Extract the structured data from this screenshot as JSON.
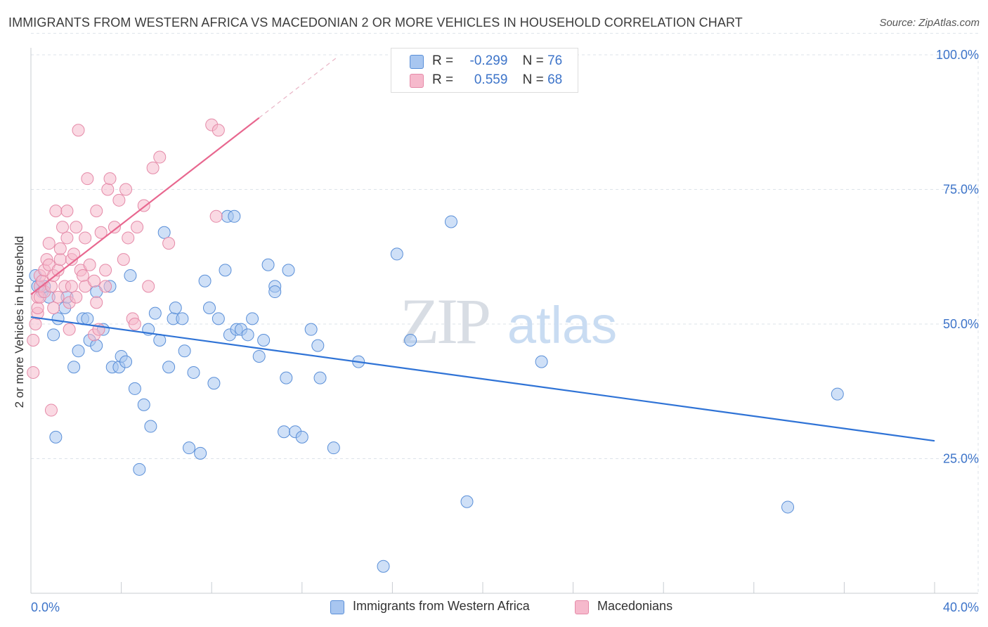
{
  "header": {
    "title": "IMMIGRANTS FROM WESTERN AFRICA VS MACEDONIAN 2 OR MORE VEHICLES IN HOUSEHOLD CORRELATION CHART",
    "source": "Source: ZipAtlas.com"
  },
  "watermark": {
    "zip": "ZIP",
    "atlas": "atlas"
  },
  "legend": {
    "r_label": "R =",
    "n_label": "N =",
    "rows": [
      {
        "r": "-0.299",
        "n": "76"
      },
      {
        "r": "0.559",
        "n": "68"
      }
    ]
  },
  "colors": {
    "blue_fill": "#a8c6f0",
    "blue_stroke": "#5a8fd8",
    "blue_line": "#2f73d6",
    "pink_fill": "#f6b9cc",
    "pink_stroke": "#e58aa8",
    "pink_line": "#e8678f",
    "axis_text": "#3d74c9",
    "grid": "#dde3ea"
  },
  "chart_data": {
    "type": "scatter",
    "title": "IMMIGRANTS FROM WESTERN AFRICA VS MACEDONIAN 2 OR MORE VEHICLES IN HOUSEHOLD CORRELATION CHART",
    "xlabel": "",
    "ylabel": "2 or more Vehicles in Household",
    "xlim": [
      0,
      40
    ],
    "ylim": [
      0,
      104
    ],
    "x_tick_labels": [
      "0.0%",
      "40.0%"
    ],
    "y_ticks": [
      25,
      50,
      75,
      100
    ],
    "y_tick_labels": [
      "25.0%",
      "50.0%",
      "75.0%",
      "100.0%"
    ],
    "grid": true,
    "legend_position": "bottom-center",
    "series": [
      {
        "name": "Immigrants from Western Africa",
        "color": "#a8c6f0",
        "r": -0.299,
        "n": 76,
        "trendline": {
          "x": [
            0,
            40
          ],
          "y": [
            51.3,
            28.3
          ]
        },
        "points": [
          [
            0.2,
            59
          ],
          [
            0.4,
            57
          ],
          [
            0.5,
            56
          ],
          [
            0.6,
            57
          ],
          [
            0.8,
            55
          ],
          [
            1.0,
            48
          ],
          [
            1.2,
            51
          ],
          [
            1.5,
            53
          ],
          [
            1.6,
            55
          ],
          [
            1.1,
            29
          ],
          [
            1.9,
            42
          ],
          [
            2.1,
            45
          ],
          [
            2.3,
            51
          ],
          [
            2.5,
            51
          ],
          [
            2.6,
            47
          ],
          [
            2.9,
            46
          ],
          [
            2.9,
            56
          ],
          [
            3.2,
            49
          ],
          [
            3.5,
            57
          ],
          [
            3.6,
            42
          ],
          [
            3.9,
            42
          ],
          [
            4.0,
            44
          ],
          [
            4.2,
            43
          ],
          [
            4.4,
            59
          ],
          [
            4.6,
            38
          ],
          [
            4.8,
            23
          ],
          [
            5.0,
            35
          ],
          [
            5.2,
            49
          ],
          [
            5.3,
            31
          ],
          [
            5.5,
            52
          ],
          [
            5.7,
            47
          ],
          [
            5.9,
            67
          ],
          [
            6.1,
            42
          ],
          [
            6.3,
            51
          ],
          [
            6.4,
            53
          ],
          [
            6.7,
            51
          ],
          [
            6.8,
            45
          ],
          [
            7.0,
            27
          ],
          [
            7.2,
            41
          ],
          [
            7.5,
            26
          ],
          [
            7.7,
            58
          ],
          [
            7.9,
            53
          ],
          [
            8.1,
            39
          ],
          [
            8.3,
            51
          ],
          [
            8.6,
            60
          ],
          [
            8.7,
            70
          ],
          [
            8.8,
            48
          ],
          [
            9.0,
            70
          ],
          [
            9.1,
            49
          ],
          [
            9.3,
            49
          ],
          [
            9.6,
            48
          ],
          [
            9.8,
            51
          ],
          [
            10.1,
            44
          ],
          [
            10.3,
            47
          ],
          [
            10.5,
            61
          ],
          [
            10.8,
            57
          ],
          [
            10.8,
            56
          ],
          [
            11.2,
            30
          ],
          [
            11.3,
            40
          ],
          [
            11.4,
            60
          ],
          [
            11.7,
            30
          ],
          [
            12.0,
            29
          ],
          [
            12.4,
            49
          ],
          [
            12.7,
            46
          ],
          [
            12.8,
            40
          ],
          [
            13.4,
            27
          ],
          [
            14.5,
            43
          ],
          [
            15.6,
            5
          ],
          [
            16.2,
            63
          ],
          [
            16.8,
            47
          ],
          [
            18.6,
            69
          ],
          [
            19.3,
            17
          ],
          [
            22.6,
            43
          ],
          [
            33.5,
            16
          ],
          [
            35.7,
            37
          ],
          [
            0.3,
            57
          ]
        ]
      },
      {
        "name": "Macedonians",
        "color": "#f6b9cc",
        "r": 0.559,
        "n": 68,
        "trendline": {
          "x": [
            0,
            10.1
          ],
          "y": [
            55.5,
            88.3
          ]
        },
        "trendline_extension": {
          "x": [
            10.1,
            13.6
          ],
          "y": [
            88.3,
            99.7
          ]
        },
        "points": [
          [
            0.1,
            41
          ],
          [
            0.1,
            47
          ],
          [
            0.2,
            50
          ],
          [
            0.3,
            52
          ],
          [
            0.3,
            53
          ],
          [
            0.3,
            55
          ],
          [
            0.4,
            55
          ],
          [
            0.4,
            57
          ],
          [
            0.4,
            59
          ],
          [
            0.5,
            58
          ],
          [
            0.6,
            56
          ],
          [
            0.6,
            60
          ],
          [
            0.7,
            62
          ],
          [
            0.8,
            61
          ],
          [
            0.8,
            65
          ],
          [
            0.9,
            57
          ],
          [
            1.0,
            53
          ],
          [
            1.0,
            59
          ],
          [
            1.1,
            71
          ],
          [
            1.2,
            55
          ],
          [
            1.2,
            60
          ],
          [
            1.3,
            62
          ],
          [
            1.3,
            64
          ],
          [
            1.4,
            68
          ],
          [
            1.5,
            57
          ],
          [
            1.6,
            66
          ],
          [
            1.6,
            71
          ],
          [
            1.7,
            49
          ],
          [
            1.7,
            54
          ],
          [
            1.8,
            57
          ],
          [
            1.8,
            62
          ],
          [
            1.9,
            63
          ],
          [
            2.0,
            55
          ],
          [
            2.0,
            68
          ],
          [
            2.1,
            86
          ],
          [
            2.2,
            60
          ],
          [
            2.3,
            59
          ],
          [
            2.4,
            57
          ],
          [
            2.4,
            66
          ],
          [
            2.5,
            77
          ],
          [
            2.6,
            61
          ],
          [
            2.8,
            48
          ],
          [
            2.8,
            58
          ],
          [
            2.9,
            71
          ],
          [
            2.9,
            54
          ],
          [
            3.0,
            49
          ],
          [
            3.1,
            67
          ],
          [
            3.3,
            57
          ],
          [
            3.3,
            60
          ],
          [
            3.4,
            75
          ],
          [
            3.5,
            77
          ],
          [
            3.7,
            68
          ],
          [
            3.9,
            73
          ],
          [
            4.1,
            62
          ],
          [
            4.2,
            75
          ],
          [
            4.3,
            66
          ],
          [
            4.5,
            51
          ],
          [
            4.6,
            50
          ],
          [
            4.7,
            68
          ],
          [
            5.0,
            72
          ],
          [
            5.2,
            57
          ],
          [
            5.4,
            79
          ],
          [
            5.7,
            81
          ],
          [
            6.1,
            65
          ],
          [
            8.0,
            87
          ],
          [
            8.3,
            86
          ],
          [
            8.2,
            70
          ],
          [
            0.9,
            34
          ]
        ]
      }
    ]
  },
  "bottom_legend": [
    {
      "label": "Immigrants from Western Africa"
    },
    {
      "label": "Macedonians"
    }
  ]
}
